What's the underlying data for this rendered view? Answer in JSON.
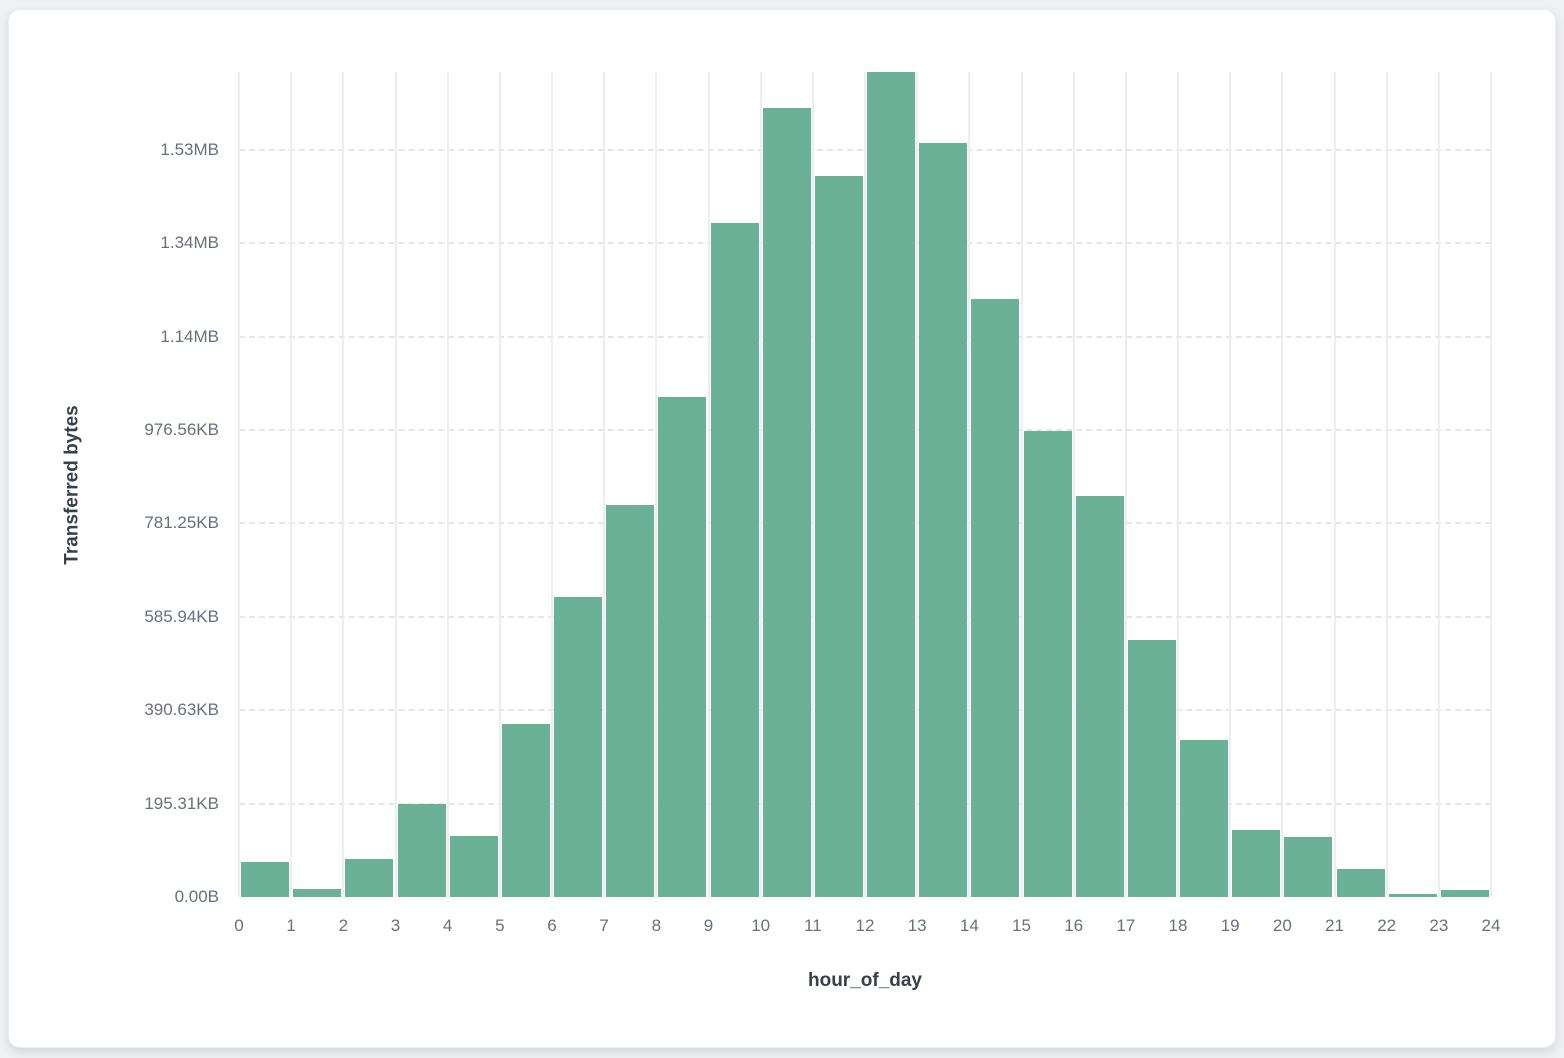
{
  "colors": {
    "bar": "#6bb198",
    "tick_label": "#68707e",
    "axis_title": "#384049",
    "vertical_grid": "#eceef2",
    "horizontal_grid": "#e3e6ec",
    "card_background": "#ffffff",
    "card_border": "#ebedf0",
    "page_background": "#f0f1f4"
  },
  "chart_data": {
    "type": "bar",
    "title": "",
    "xlabel": "hour_of_day",
    "ylabel": "Transferred bytes",
    "x_bins": [
      0,
      1,
      2,
      3,
      4,
      5,
      6,
      7,
      8,
      9,
      10,
      11,
      12,
      13,
      14,
      15,
      16,
      17,
      18,
      19,
      20,
      21,
      22,
      23
    ],
    "values": [
      75000,
      16500,
      80500,
      198500,
      130500,
      371000,
      642000,
      840000,
      1070000,
      1444000,
      1690000,
      1545000,
      1767000,
      1616000,
      1280000,
      998000,
      858000,
      550000,
      336000,
      143000,
      128000,
      59000,
      5500,
      15500
    ],
    "values_unit": "bytes",
    "x_tick_labels": [
      "0",
      "1",
      "2",
      "3",
      "4",
      "5",
      "6",
      "7",
      "8",
      "9",
      "10",
      "11",
      "12",
      "13",
      "14",
      "15",
      "16",
      "17",
      "18",
      "19",
      "20",
      "21",
      "22",
      "23",
      "24"
    ],
    "y_ticks": [
      {
        "bytes": 0,
        "label": "0.00B"
      },
      {
        "bytes": 200000,
        "label": "195.31KB"
      },
      {
        "bytes": 400000,
        "label": "390.63KB"
      },
      {
        "bytes": 600000,
        "label": "585.94KB"
      },
      {
        "bytes": 800000,
        "label": "781.25KB"
      },
      {
        "bytes": 1000000,
        "label": "976.56KB"
      },
      {
        "bytes": 1200000,
        "label": "1.14MB"
      },
      {
        "bytes": 1400000,
        "label": "1.34MB"
      },
      {
        "bytes": 1600000,
        "label": "1.53MB"
      }
    ],
    "x_range": [
      0,
      24
    ],
    "y_axis_max_bytes": 1767000,
    "grid": {
      "horizontal": "dashed",
      "vertical": "solid"
    },
    "legend": "none"
  }
}
